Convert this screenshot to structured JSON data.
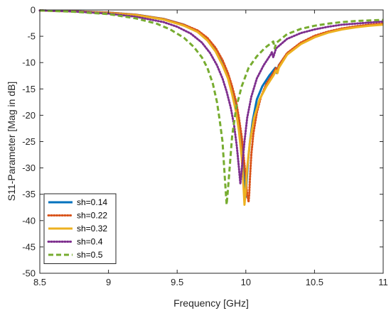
{
  "chart_data": {
    "type": "line",
    "title": "",
    "xlabel": "Frequency [GHz]",
    "ylabel": "S11-Parameter [Mag in dB]",
    "xlim": [
      8.5,
      11
    ],
    "ylim": [
      -50,
      0
    ],
    "xticks": [
      8.5,
      9,
      9.5,
      10,
      10.5,
      11
    ],
    "xtick_labels": [
      "8.5",
      "9",
      "9.5",
      "10",
      "10.5",
      "11"
    ],
    "yticks": [
      0,
      -5,
      -10,
      -15,
      -20,
      -25,
      -30,
      -35,
      -40,
      -45,
      -50
    ],
    "ytick_labels": [
      "0",
      "-5",
      "-10",
      "-15",
      "-20",
      "-25",
      "-30",
      "-35",
      "-40",
      "-45",
      "-50"
    ],
    "grid": false,
    "legend_position": "bottom-left",
    "series": [
      {
        "name": "sh=0.14",
        "color": "#0072BD",
        "dash": "solid",
        "x": [
          8.5,
          8.75,
          9.0,
          9.2,
          9.4,
          9.55,
          9.65,
          9.72,
          9.78,
          9.83,
          9.87,
          9.9,
          9.93,
          9.95,
          9.97,
          9.985,
          9.995,
          10.0,
          10.005,
          10.015,
          10.03,
          10.05,
          10.08,
          10.12,
          10.17,
          10.2,
          10.215,
          10.225,
          10.24,
          10.3,
          10.4,
          10.5,
          10.6,
          10.7,
          10.8,
          10.9,
          11.0
        ],
        "y": [
          -0.1,
          -0.25,
          -0.5,
          -0.9,
          -1.7,
          -2.8,
          -4.0,
          -5.5,
          -7.5,
          -10.0,
          -12.5,
          -15.0,
          -18.0,
          -21.0,
          -25.0,
          -29.0,
          -33.0,
          -35.5,
          -33.0,
          -29.0,
          -25.0,
          -21.0,
          -17.0,
          -14.5,
          -12.5,
          -11.5,
          -11.0,
          -12.0,
          -10.5,
          -8.3,
          -6.3,
          -5.0,
          -4.2,
          -3.6,
          -3.2,
          -2.9,
          -2.7
        ]
      },
      {
        "name": "sh=0.22",
        "color": "#D95319",
        "dash": "dotted",
        "x": [
          8.5,
          8.75,
          9.0,
          9.2,
          9.4,
          9.55,
          9.65,
          9.72,
          9.78,
          9.83,
          9.87,
          9.9,
          9.93,
          9.95,
          9.97,
          9.985,
          10.0,
          10.01,
          10.02,
          10.025,
          10.03,
          10.04,
          10.055,
          10.08,
          10.11,
          10.15,
          10.2,
          10.22,
          10.23,
          10.24,
          10.3,
          10.4,
          10.5,
          10.6,
          10.7,
          10.8,
          10.9,
          11.0
        ],
        "y": [
          -0.1,
          -0.25,
          -0.5,
          -0.9,
          -1.7,
          -2.8,
          -3.9,
          -5.3,
          -7.2,
          -9.5,
          -12.0,
          -14.5,
          -17.5,
          -20.5,
          -24.0,
          -28.0,
          -32.0,
          -35.0,
          -36.5,
          -35.0,
          -32.0,
          -27.5,
          -23.5,
          -19.5,
          -16.5,
          -14.0,
          -12.0,
          -11.0,
          -12.0,
          -10.5,
          -8.2,
          -6.2,
          -4.9,
          -4.1,
          -3.5,
          -3.1,
          -2.8,
          -2.6
        ]
      },
      {
        "name": "sh=0.32",
        "color": "#EDB120",
        "dash": "solid",
        "x": [
          8.5,
          8.75,
          9.0,
          9.2,
          9.4,
          9.55,
          9.65,
          9.72,
          9.78,
          9.83,
          9.87,
          9.9,
          9.93,
          9.95,
          9.97,
          9.98,
          9.99,
          10.0,
          10.01,
          10.03,
          10.06,
          10.1,
          10.15,
          10.2,
          10.22,
          10.23,
          10.24,
          10.3,
          10.4,
          10.5,
          10.6,
          10.7,
          10.8,
          10.9,
          11.0
        ],
        "y": [
          -0.1,
          -0.3,
          -0.6,
          -1.0,
          -1.8,
          -3.0,
          -4.2,
          -5.8,
          -7.9,
          -10.5,
          -13.0,
          -16.0,
          -19.5,
          -23.0,
          -28.0,
          -32.0,
          -37.0,
          -34.0,
          -30.0,
          -25.0,
          -20.5,
          -17.0,
          -14.5,
          -12.5,
          -11.5,
          -12.0,
          -11.0,
          -8.5,
          -6.5,
          -5.2,
          -4.3,
          -3.7,
          -3.3,
          -3.0,
          -2.8
        ]
      },
      {
        "name": "sh=0.4",
        "color": "#7E2F8E",
        "dash": "dotted",
        "x": [
          8.5,
          8.75,
          9.0,
          9.2,
          9.4,
          9.5,
          9.6,
          9.68,
          9.74,
          9.79,
          9.83,
          9.86,
          9.89,
          9.915,
          9.935,
          9.95,
          9.96,
          9.975,
          9.99,
          10.01,
          10.04,
          10.08,
          10.13,
          10.18,
          10.19,
          10.2,
          10.22,
          10.3,
          10.4,
          10.5,
          10.6,
          10.7,
          10.8,
          10.9,
          11.0
        ],
        "y": [
          -0.1,
          -0.3,
          -0.7,
          -1.3,
          -2.3,
          -3.2,
          -4.5,
          -6.2,
          -8.2,
          -10.5,
          -13.0,
          -15.5,
          -18.5,
          -22.0,
          -26.0,
          -30.0,
          -33.0,
          -29.0,
          -25.0,
          -20.5,
          -16.5,
          -13.0,
          -10.5,
          -8.5,
          -8.0,
          -9.0,
          -7.3,
          -5.5,
          -4.4,
          -3.7,
          -3.2,
          -2.8,
          -2.6,
          -2.4,
          -2.2
        ]
      },
      {
        "name": "sh=0.5",
        "color": "#77AC30",
        "dash": "dashed",
        "x": [
          8.5,
          8.75,
          9.0,
          9.2,
          9.35,
          9.45,
          9.55,
          9.62,
          9.68,
          9.72,
          9.76,
          9.79,
          9.81,
          9.83,
          9.84,
          9.85,
          9.86,
          9.87,
          9.885,
          9.9,
          9.93,
          9.97,
          10.02,
          10.08,
          10.14,
          10.2,
          10.21,
          10.22,
          10.3,
          10.4,
          10.5,
          10.6,
          10.7,
          10.8,
          10.9,
          11.0
        ],
        "y": [
          -0.1,
          -0.35,
          -0.8,
          -1.6,
          -2.6,
          -3.7,
          -5.3,
          -7.0,
          -9.0,
          -11.0,
          -14.0,
          -17.5,
          -21.0,
          -25.0,
          -29.0,
          -33.0,
          -37.0,
          -34.0,
          -29.0,
          -24.0,
          -18.5,
          -14.5,
          -11.0,
          -8.8,
          -7.2,
          -6.0,
          -7.3,
          -6.3,
          -4.6,
          -3.6,
          -3.0,
          -2.6,
          -2.3,
          -2.1,
          -2.0,
          -1.9
        ]
      }
    ]
  }
}
